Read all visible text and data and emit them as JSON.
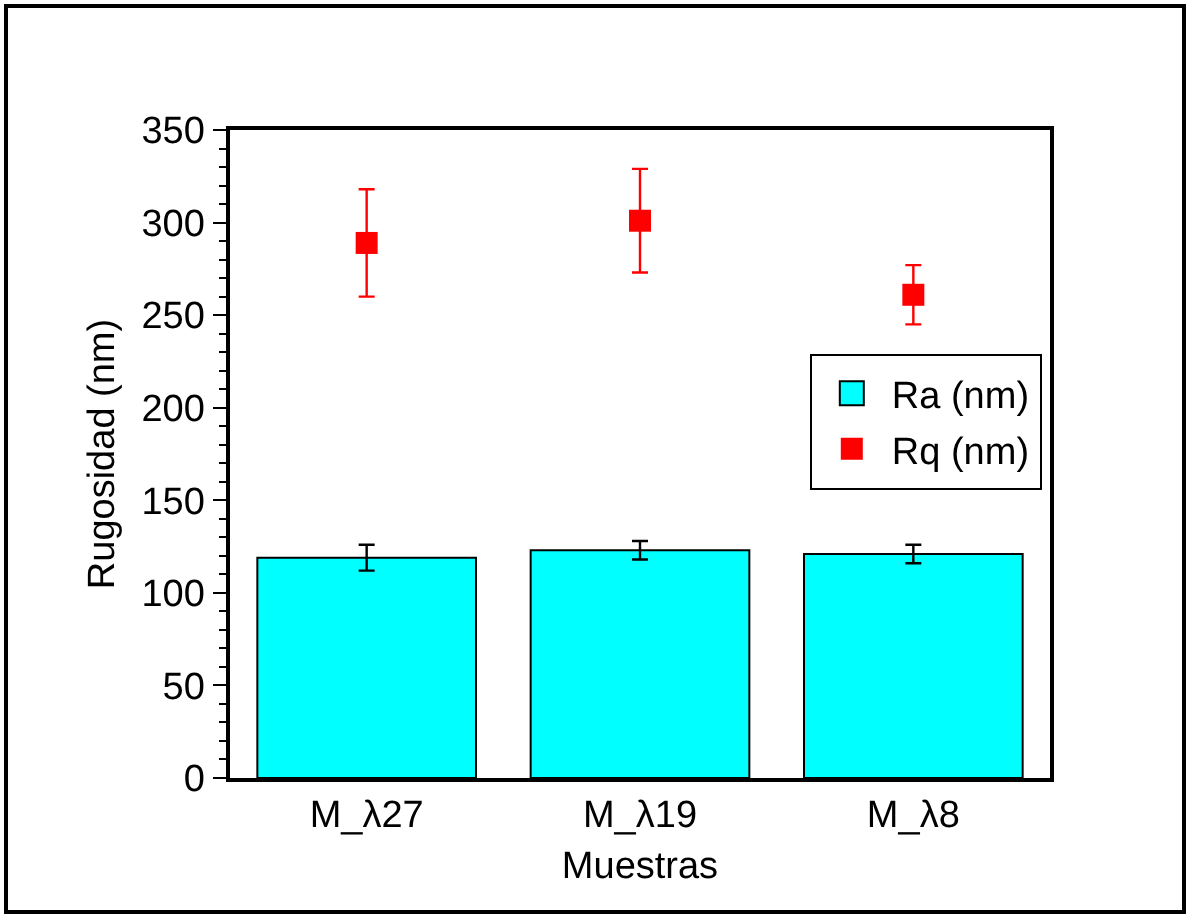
{
  "chart_data": {
    "type": "bar",
    "xlabel": "Muestras",
    "ylabel": "Rugosidad (nm)",
    "categories": [
      "M_λ27",
      "M_λ19",
      "M_λ8"
    ],
    "series": [
      {
        "name": "Ra (nm)",
        "color": "#00ffff",
        "values": [
          119,
          123,
          121
        ],
        "errors": [
          7,
          5,
          5
        ]
      },
      {
        "name": "Rq (nm)",
        "type": "scatter",
        "color": "#ff0000",
        "x": [
          "M_λ27",
          "M_λ19",
          "M_λ8"
        ],
        "values": [
          289,
          301,
          261
        ],
        "errors": [
          29,
          28,
          16
        ],
        "marker": "square"
      }
    ],
    "ylim": [
      0,
      350
    ],
    "yticks": [
      0,
      50,
      100,
      150,
      200,
      250,
      300,
      350
    ],
    "grid": false,
    "legend": "right"
  }
}
